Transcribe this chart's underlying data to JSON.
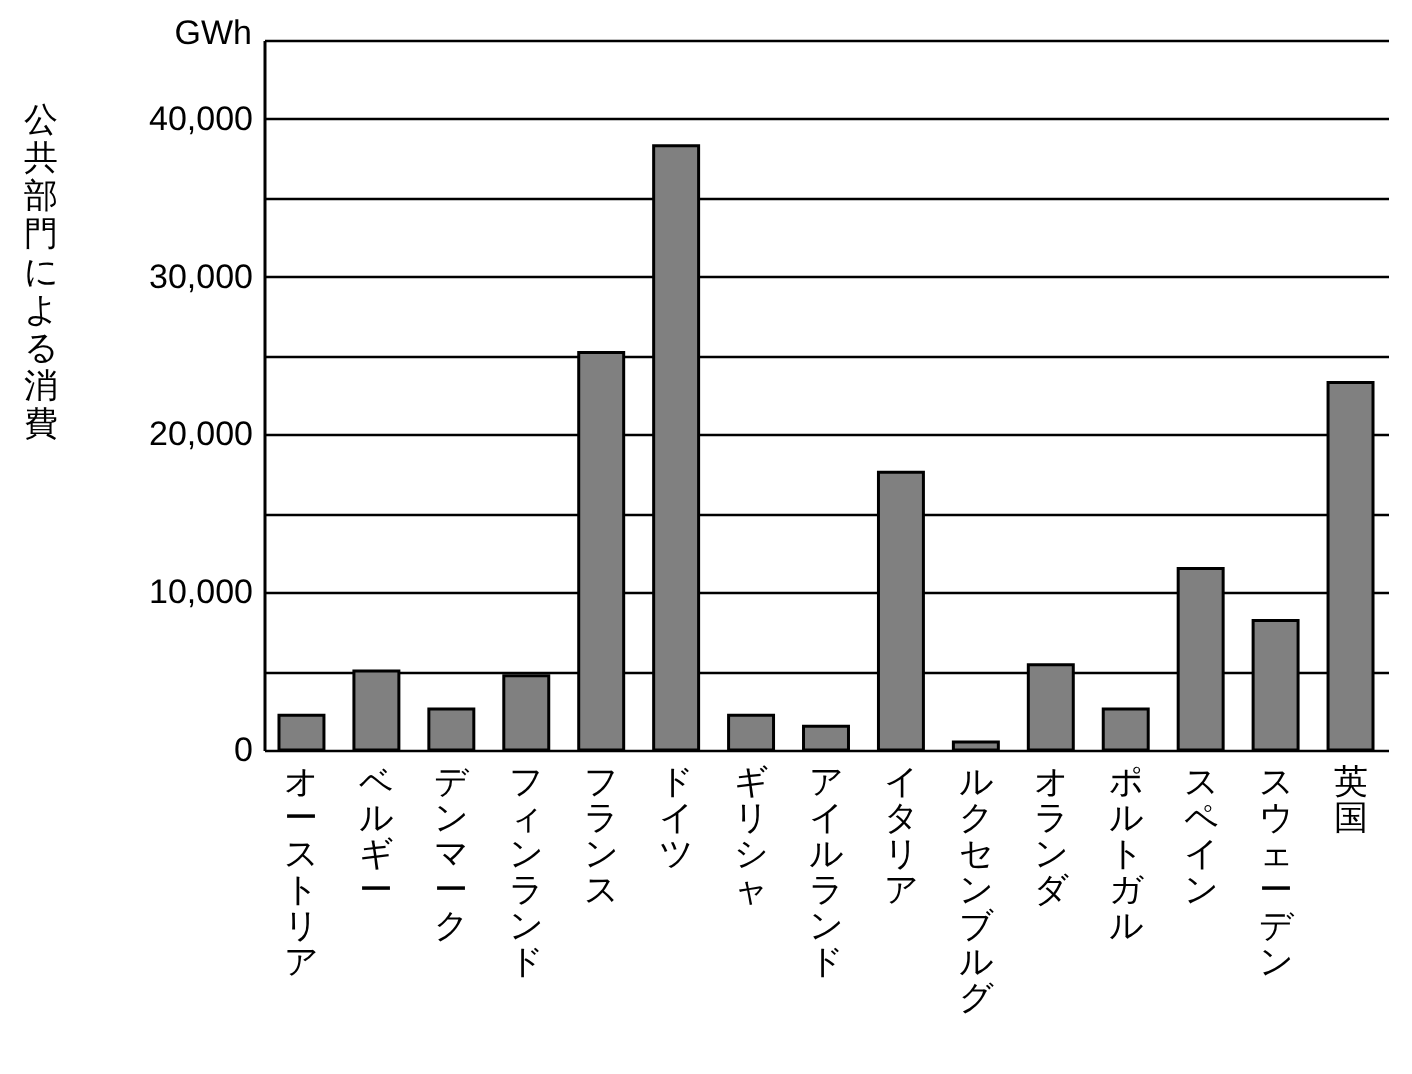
{
  "chart_data": {
    "type": "bar",
    "ylabel": "公共部門による消費",
    "annotations": [
      "GWh"
    ],
    "categories": [
      "オーストリア",
      "ベルギー",
      "デンマーク",
      "フィンランド",
      "フランス",
      "ドイツ",
      "ギリシャ",
      "アイルランド",
      "イタリア",
      "ルクセンブルグ",
      "オランダ",
      "ポルトガル",
      "スペイン",
      "スウェーデン",
      "英国"
    ],
    "values": [
      2200,
      5000,
      2600,
      4700,
      25200,
      38300,
      2200,
      1500,
      17600,
      500,
      5400,
      2600,
      11500,
      8200,
      23300
    ],
    "color": "#808080",
    "ylim": [
      0,
      45000
    ],
    "yticks": [
      0,
      {
        "value": 5000,
        "label": null
      },
      {
        "value": 10000,
        "label": "10,000"
      },
      {
        "value": 15000,
        "label": null
      },
      {
        "value": 20000,
        "label": "20,000"
      },
      {
        "value": 25000,
        "label": null
      },
      {
        "value": 30000,
        "label": "30,000"
      },
      {
        "value": 35000,
        "label": null
      },
      {
        "value": 40000,
        "label": "40,000"
      },
      {
        "value": 45000,
        "label": null
      }
    ],
    "grid": "y"
  }
}
